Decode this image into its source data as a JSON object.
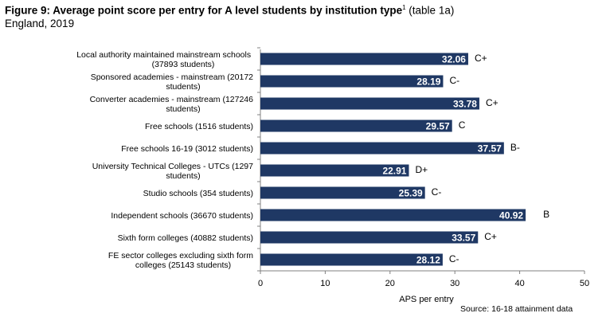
{
  "header": {
    "title_bold": "Figure 9: Average point score per entry for A level students by institution type",
    "title_sup": "1",
    "title_rest": " (table 1a)",
    "subtitle": "England, 2019"
  },
  "source": "Source: 16-18 attainment data",
  "chart_data": {
    "type": "bar",
    "orientation": "horizontal",
    "categories": [
      "Local authority maintained mainstream schools  (37893 students)",
      "Sponsored academies - mainstream  (20172 students)",
      "Converter academies - mainstream  (127246 students)",
      "Free schools  (1516 students)",
      "Free schools 16-19  (3012 students)",
      "University Technical Colleges - UTCs  (1297 students)",
      "Studio schools  (354 students)",
      "Independent schools  (36670 students)",
      "Sixth form colleges  (40882 students)",
      "FE sector colleges excluding sixth form colleges  (25143 students)"
    ],
    "values": [
      32.06,
      28.19,
      33.78,
      29.57,
      37.57,
      22.91,
      25.39,
      40.92,
      33.57,
      28.12
    ],
    "value_labels": [
      "32.06",
      "28.19",
      "33.78",
      "29.57",
      "37.57",
      "22.91",
      "25.39",
      "40.92",
      "33.57",
      "28.12"
    ],
    "grades": [
      "C+",
      "C-",
      "C+",
      "C",
      "B-",
      "D+",
      "C-",
      "B",
      "C+",
      "C-"
    ],
    "xlabel": "APS per entry",
    "xlim": [
      0,
      50
    ],
    "xticks": [
      "0",
      "10",
      "20",
      "30",
      "40",
      "50"
    ],
    "grid": false,
    "legend": "none",
    "bar_color": "#1f3864"
  }
}
